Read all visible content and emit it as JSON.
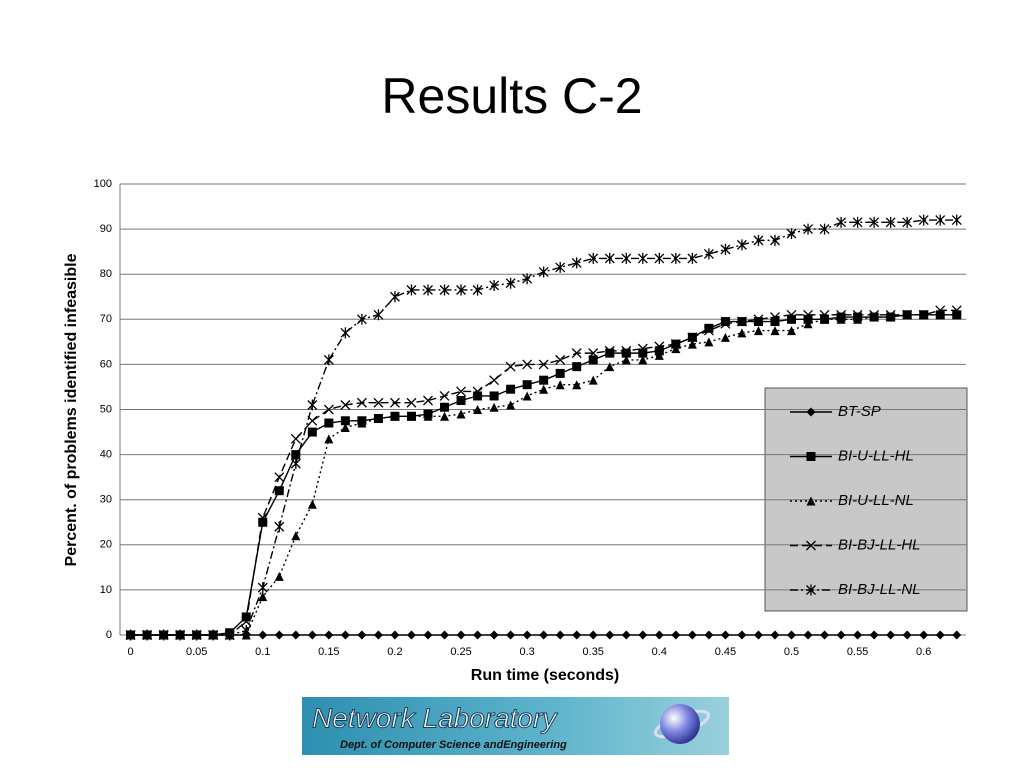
{
  "chart_data": {
    "type": "line",
    "title": "Results C-2",
    "x_label": "Run time (seconds)",
    "y_label": "Percent. of problems identified infeasible",
    "x": [
      0,
      0.0125,
      0.025,
      0.0375,
      0.05,
      0.0625,
      0.075,
      0.0875,
      0.1,
      0.1125,
      0.125,
      0.1375,
      0.15,
      0.1625,
      0.175,
      0.1875,
      0.2,
      0.2125,
      0.225,
      0.2375,
      0.25,
      0.2625,
      0.275,
      0.2875,
      0.3,
      0.3125,
      0.325,
      0.3375,
      0.35,
      0.3625,
      0.375,
      0.3875,
      0.4,
      0.4125,
      0.425,
      0.4375,
      0.45,
      0.4625,
      0.475,
      0.4875,
      0.5,
      0.5125,
      0.525,
      0.5375,
      0.55,
      0.5625,
      0.575,
      0.5875,
      0.6,
      0.6125,
      0.625
    ],
    "series": [
      {
        "name": "BT-SP",
        "color": "#000000",
        "marker": "diamond",
        "dash": "solid",
        "values": [
          0,
          0,
          0,
          0,
          0,
          0,
          0,
          0,
          0,
          0,
          0,
          0,
          0,
          0,
          0,
          0,
          0,
          0,
          0,
          0,
          0,
          0,
          0,
          0,
          0,
          0,
          0,
          0,
          0,
          0,
          0,
          0,
          0,
          0,
          0,
          0,
          0,
          0,
          0,
          0,
          0,
          0,
          0,
          0,
          0,
          0,
          0,
          0,
          0,
          0,
          0
        ]
      },
      {
        "name": "BI-U-LL-HL",
        "color": "#000000",
        "marker": "square",
        "dash": "solid",
        "values": [
          0,
          0,
          0,
          0,
          0,
          0,
          0.5,
          4,
          25,
          32,
          40,
          45,
          47,
          47.5,
          47.5,
          48,
          48.5,
          48.5,
          49,
          50.5,
          52,
          53,
          53,
          54.5,
          55.5,
          56.5,
          58,
          59.5,
          61,
          62.5,
          62.5,
          62.5,
          63,
          64.5,
          66,
          68,
          69.5,
          69.5,
          69.5,
          69.5,
          70,
          70,
          70,
          70.5,
          70.5,
          70.5,
          70.5,
          71,
          71,
          71,
          71
        ]
      },
      {
        "name": "BI-U-LL-NL",
        "color": "#000000",
        "marker": "triangle",
        "dash": "dotted",
        "values": [
          0,
          0,
          0,
          0,
          0,
          0,
          0,
          0,
          8.5,
          13,
          22,
          29,
          43.5,
          46,
          47,
          48,
          48.5,
          48.5,
          48.5,
          48.5,
          49,
          50,
          50.5,
          51,
          53,
          54.5,
          55.5,
          55.5,
          56.5,
          59.5,
          61,
          61,
          62,
          63.5,
          64.5,
          65,
          66,
          67,
          67.5,
          67.5,
          67.5,
          69,
          70,
          70,
          70,
          70.5,
          70.5,
          71,
          71,
          71,
          71
        ]
      },
      {
        "name": "BI-BJ-LL-HL",
        "color": "#000000",
        "marker": "x",
        "dash": "dashed",
        "values": [
          0,
          0,
          0,
          0,
          0,
          0,
          0,
          3,
          26,
          35,
          43.5,
          47.5,
          50,
          51,
          51.5,
          51.5,
          51.5,
          51.5,
          52,
          53,
          54,
          54,
          56.5,
          59.5,
          60,
          60,
          61,
          62.5,
          62.5,
          63,
          63,
          63.5,
          64,
          64.5,
          66,
          67.5,
          69,
          69.5,
          70,
          70.5,
          71,
          71,
          71,
          71,
          71,
          71,
          71,
          71,
          71,
          72,
          72
        ]
      },
      {
        "name": "BI-BJ-LL-NL",
        "color": "#000000",
        "marker": "star",
        "dash": "dashdot",
        "values": [
          0,
          0,
          0,
          0,
          0,
          0,
          0,
          1,
          10.5,
          24,
          38,
          51,
          61,
          67,
          70,
          71,
          75,
          76.5,
          76.5,
          76.5,
          76.5,
          76.5,
          77.5,
          78,
          79,
          80.5,
          81.5,
          82.5,
          83.5,
          83.5,
          83.5,
          83.5,
          83.5,
          83.5,
          83.5,
          84.5,
          85.5,
          86.5,
          87.5,
          87.5,
          89,
          90,
          90,
          91.5,
          91.5,
          91.5,
          91.5,
          91.5,
          92,
          92,
          92
        ]
      }
    ],
    "xlim": [
      -0.008,
      0.632
    ],
    "xticks": [
      0,
      0.05,
      0.1,
      0.15,
      0.2,
      0.25,
      0.3,
      0.35,
      0.4,
      0.45,
      0.5,
      0.55,
      0.6
    ],
    "ylim": [
      0,
      100
    ],
    "yticks": [
      0,
      10,
      20,
      30,
      40,
      50,
      60,
      70,
      80,
      90,
      100
    ],
    "grid": true,
    "legend": "right"
  },
  "logo": {
    "title": "Network Laboratory",
    "subtitle": "Dept. of Computer Science andEngineering"
  }
}
